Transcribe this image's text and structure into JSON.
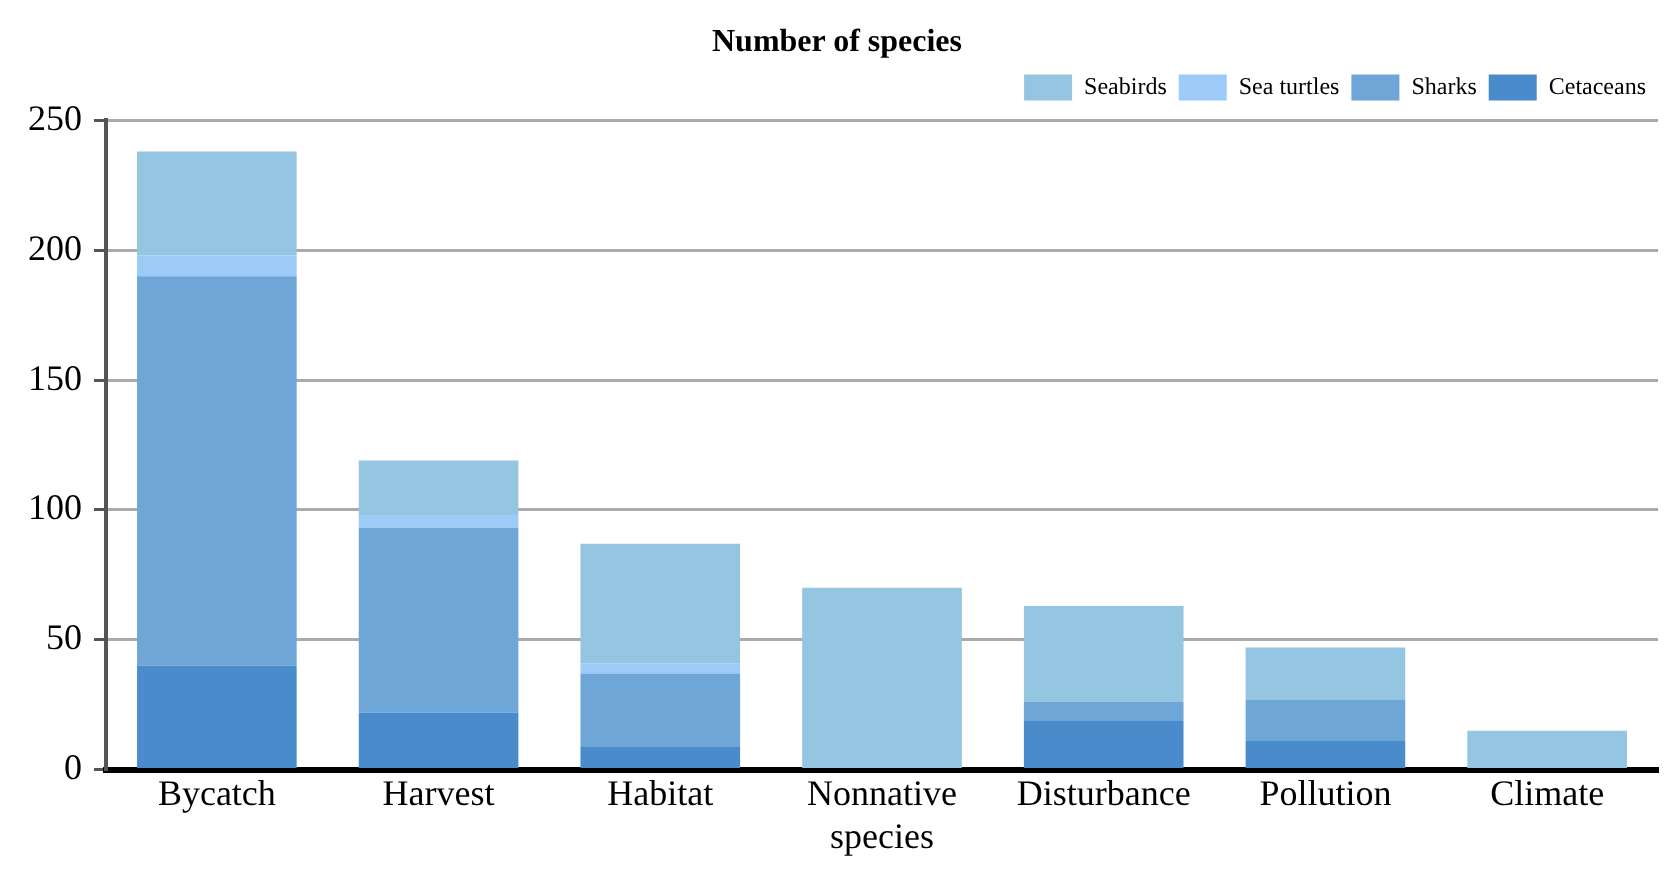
{
  "chart_data": {
    "type": "bar",
    "title": "Number of species",
    "stacked": true,
    "categories": [
      "Bycatch",
      "Harvest",
      "Habitat",
      "Nonnative species",
      "Disturbance",
      "Pollution",
      "Climate"
    ],
    "series": [
      {
        "name": "Cetaceans",
        "color": "#4a8ccb",
        "values": [
          40,
          22,
          9,
          0,
          19,
          11,
          0
        ]
      },
      {
        "name": "Sharks",
        "color": "#6ea6d7",
        "values": [
          150,
          71,
          28,
          0,
          7,
          16,
          0
        ]
      },
      {
        "name": "Sea turtles",
        "color": "#9ccbf7",
        "values": [
          8,
          5,
          4,
          0,
          0,
          0,
          0
        ]
      },
      {
        "name": "Seabirds",
        "color": "#94c5e1",
        "values": [
          40,
          21,
          46,
          70,
          37,
          20,
          15
        ]
      }
    ],
    "ylim": [
      0,
      250
    ],
    "yticks": [
      0,
      50,
      100,
      150,
      200,
      250
    ],
    "grid": "y",
    "legend": "top right"
  }
}
